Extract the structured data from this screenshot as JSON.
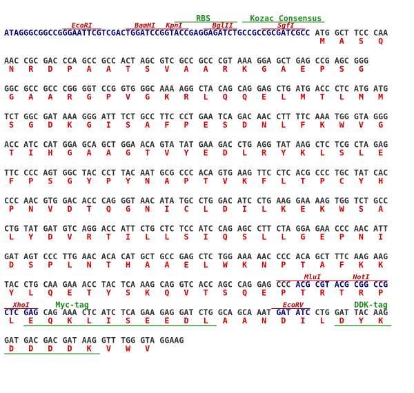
{
  "sequence_map": {
    "prefix": "ATAGGGCGGCCGGGAATTCGTCGACTGGATCCGGTACCGAGGAGATCTGCCGCCGCGATCGCC",
    "nucleotide_color": "#333333",
    "site_nucleotide_color": "#00007f",
    "amino_acid_color": "#d40000",
    "site_color": "#c00000",
    "tag_color": "#1a8a1a",
    "rows": [
      {
        "codons": [
          "ATG",
          "GCT",
          "TCC",
          "CAA"
        ],
        "amino_acids": [
          "M",
          "A",
          "S",
          "Q"
        ]
      },
      {
        "codons": [
          "AAC",
          "CGC",
          "GAC",
          "CCA",
          "GCC",
          "GCC",
          "ACT",
          "AGC",
          "GTC",
          "GCC",
          "GCC",
          "CGT",
          "AAA",
          "GGA",
          "GCT",
          "GAG",
          "CCG",
          "AGC",
          "GGG"
        ],
        "amino_acids": [
          "N",
          "R",
          "D",
          "P",
          "A",
          "A",
          "T",
          "S",
          "V",
          "A",
          "A",
          "R",
          "K",
          "G",
          "A",
          "E",
          "P",
          "S",
          "G"
        ]
      },
      {
        "codons": [
          "GGC",
          "GCC",
          "GCC",
          "CGG",
          "GGT",
          "CCG",
          "GTG",
          "GGC",
          "AAA",
          "AGG",
          "CTA",
          "CAG",
          "CAG",
          "GAG",
          "CTG",
          "ATG",
          "ACC",
          "CTC",
          "ATG",
          "ATG"
        ],
        "amino_acids": [
          "G",
          "A",
          "A",
          "R",
          "G",
          "P",
          "V",
          "G",
          "K",
          "R",
          "L",
          "Q",
          "Q",
          "E",
          "L",
          "M",
          "T",
          "L",
          "M",
          "M"
        ]
      },
      {
        "codons": [
          "TCT",
          "GGC",
          "GAT",
          "AAA",
          "GGG",
          "ATT",
          "TCT",
          "GCC",
          "TTC",
          "CCT",
          "GAA",
          "TCA",
          "GAC",
          "AAC",
          "CTT",
          "TTC",
          "AAA",
          "TGG",
          "GTA",
          "GGG"
        ],
        "amino_acids": [
          "S",
          "G",
          "D",
          "K",
          "G",
          "I",
          "S",
          "A",
          "F",
          "P",
          "E",
          "S",
          "D",
          "N",
          "L",
          "F",
          "K",
          "W",
          "V",
          "G"
        ]
      },
      {
        "codons": [
          "ACC",
          "ATC",
          "CAT",
          "GGA",
          "GCA",
          "GCT",
          "GGA",
          "ACA",
          "GTA",
          "TAT",
          "GAA",
          "GAC",
          "CTG",
          "AGG",
          "TAT",
          "AAG",
          "CTC",
          "TCG",
          "CTA",
          "GAG"
        ],
        "amino_acids": [
          "T",
          "I",
          "H",
          "G",
          "A",
          "A",
          "G",
          "T",
          "V",
          "Y",
          "E",
          "D",
          "L",
          "R",
          "Y",
          "K",
          "L",
          "S",
          "L",
          "E"
        ]
      },
      {
        "codons": [
          "TTC",
          "CCC",
          "AGT",
          "GGC",
          "TAC",
          "CCT",
          "TAC",
          "AAT",
          "GCG",
          "CCC",
          "ACA",
          "GTG",
          "AAG",
          "TTC",
          "CTC",
          "ACG",
          "CCC",
          "TGC",
          "TAT",
          "CAC"
        ],
        "amino_acids": [
          "F",
          "P",
          "S",
          "G",
          "Y",
          "P",
          "Y",
          "N",
          "A",
          "P",
          "T",
          "V",
          "K",
          "F",
          "L",
          "T",
          "P",
          "C",
          "Y",
          "H"
        ]
      },
      {
        "codons": [
          "CCC",
          "AAC",
          "GTG",
          "GAC",
          "ACC",
          "CAG",
          "GGT",
          "AAC",
          "ATA",
          "TGC",
          "CTG",
          "GAC",
          "ATC",
          "CTG",
          "AAG",
          "GAA",
          "AAG",
          "TGG",
          "TCT",
          "GCC"
        ],
        "amino_acids": [
          "P",
          "N",
          "V",
          "D",
          "T",
          "Q",
          "G",
          "N",
          "I",
          "C",
          "L",
          "D",
          "I",
          "L",
          "K",
          "E",
          "K",
          "W",
          "S",
          "A"
        ]
      },
      {
        "codons": [
          "CTG",
          "TAT",
          "GAT",
          "GTC",
          "AGG",
          "ACC",
          "ATT",
          "CTG",
          "CTC",
          "TCC",
          "ATC",
          "CAG",
          "AGC",
          "CTT",
          "CTA",
          "GGA",
          "GAA",
          "CCC",
          "AAC",
          "ATT"
        ],
        "amino_acids": [
          "L",
          "Y",
          "D",
          "V",
          "R",
          "T",
          "I",
          "L",
          "L",
          "S",
          "I",
          "Q",
          "S",
          "L",
          "L",
          "G",
          "E",
          "P",
          "N",
          "I"
        ]
      },
      {
        "codons": [
          "GAT",
          "AGT",
          "CCC",
          "TTG",
          "AAC",
          "ACA",
          "CAT",
          "GCT",
          "GCC",
          "GAG",
          "CTC",
          "TGG",
          "AAA",
          "AAC",
          "CCC",
          "ACA",
          "GCT",
          "TTC",
          "AAG",
          "AAG"
        ],
        "amino_acids": [
          "D",
          "S",
          "P",
          "L",
          "N",
          "T",
          "H",
          "A",
          "A",
          "E",
          "L",
          "W",
          "K",
          "N",
          "P",
          "T",
          "A",
          "F",
          "K",
          "K"
        ]
      },
      {
        "codons": [
          "TAC",
          "CTG",
          "CAA",
          "GAA",
          "ACC",
          "TAC",
          "TCA",
          "AAG",
          "CAG",
          "GTC",
          "ACC",
          "AGC",
          "CAG",
          "GAG",
          "CCC",
          "ACG",
          "CGT",
          "ACG",
          "CGG",
          "CCG"
        ],
        "amino_acids": [
          "Y",
          "L",
          "Q",
          "E",
          "T",
          "Y",
          "S",
          "K",
          "Q",
          "V",
          "T",
          "S",
          "Q",
          "E",
          "P",
          "T",
          "R",
          "T",
          "R",
          "P"
        ]
      },
      {
        "codons": [
          "CTC",
          "GAG",
          "CAG",
          "AAA",
          "CTC",
          "ATC",
          "TCA",
          "GAA",
          "GAG",
          "GAT",
          "CTG",
          "GCA",
          "GCA",
          "AAT",
          "GAT",
          "ATC",
          "CTG",
          "GAT",
          "TAC",
          "AAG"
        ],
        "amino_acids": [
          "L",
          "E",
          "Q",
          "K",
          "L",
          "I",
          "S",
          "E",
          "E",
          "D",
          "L",
          "A",
          "A",
          "N",
          "D",
          "I",
          "L",
          "D",
          "Y",
          "K"
        ]
      },
      {
        "codons": [
          "GAT",
          "GAC",
          "GAC",
          "GAT",
          "AAG",
          "GTT",
          "TGG",
          "GTA",
          "GGAAG"
        ],
        "amino_acids": [
          "D",
          "D",
          "D",
          "D",
          "K",
          "V",
          "W",
          "V",
          null
        ]
      }
    ],
    "annotations": [
      {
        "label": "RBS",
        "kind": "tag"
      },
      {
        "label": "Kozac Consensus",
        "kind": "tag"
      },
      {
        "label": "EcoRI",
        "kind": "site"
      },
      {
        "label": "BamHI",
        "kind": "site"
      },
      {
        "label": "KpnI",
        "kind": "site"
      },
      {
        "label": "BglII",
        "kind": "site"
      },
      {
        "label": "SgfI",
        "kind": "site"
      },
      {
        "label": "MluI",
        "kind": "site"
      },
      {
        "label": "NotI",
        "kind": "site"
      },
      {
        "label": "XhoI",
        "kind": "site"
      },
      {
        "label": "Myc-tag",
        "kind": "tag"
      },
      {
        "label": "EcoRV",
        "kind": "site"
      },
      {
        "label": "DDK-tag",
        "kind": "tag"
      }
    ]
  }
}
